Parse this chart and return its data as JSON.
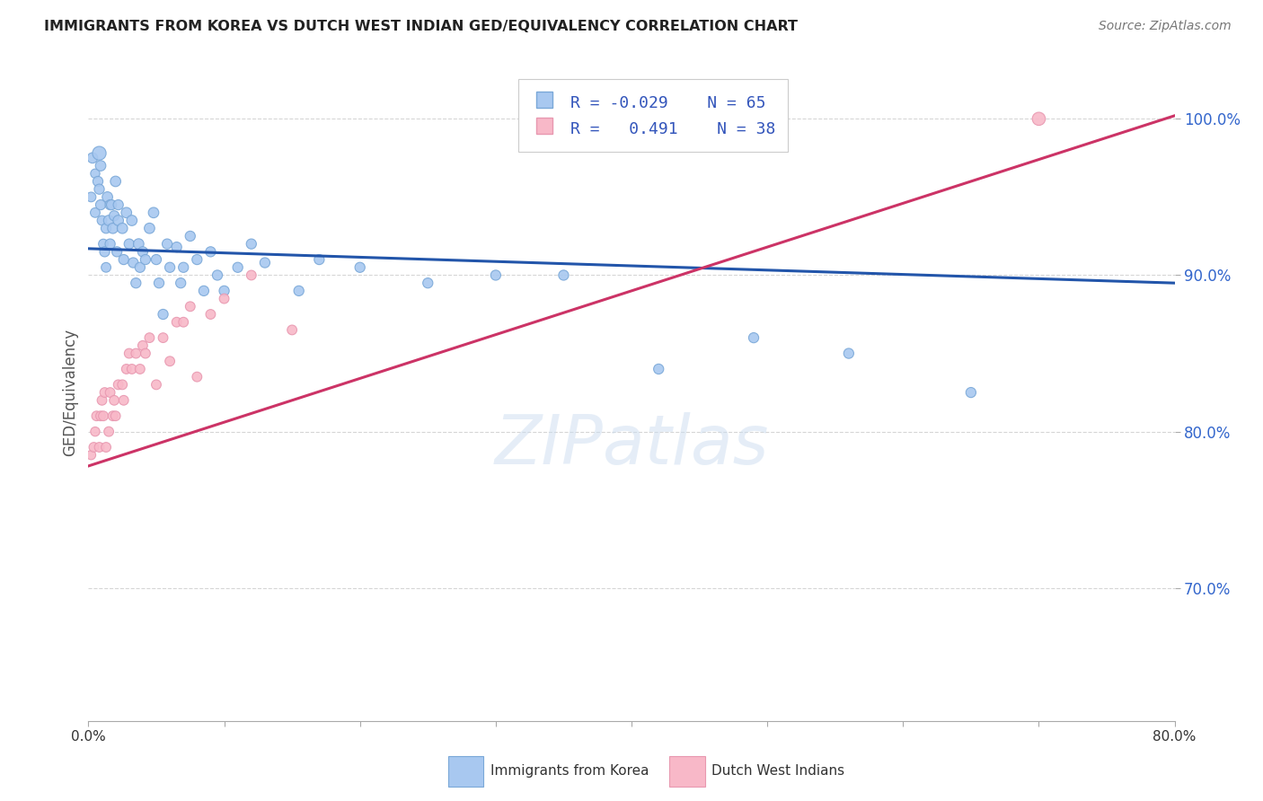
{
  "title": "IMMIGRANTS FROM KOREA VS DUTCH WEST INDIAN GED/EQUIVALENCY CORRELATION CHART",
  "source": "Source: ZipAtlas.com",
  "ylabel": "GED/Equivalency",
  "xlim": [
    0.0,
    0.8
  ],
  "ylim": [
    0.615,
    1.035
  ],
  "ytick_labels": [
    "70.0%",
    "80.0%",
    "90.0%",
    "100.0%"
  ],
  "ytick_values": [
    0.7,
    0.8,
    0.9,
    1.0
  ],
  "xtick_values": [
    0.0,
    0.1,
    0.2,
    0.3,
    0.4,
    0.5,
    0.6,
    0.7,
    0.8
  ],
  "xtick_labels": [
    "0.0%",
    "",
    "",
    "",
    "",
    "",
    "",
    "",
    "80.0%"
  ],
  "korea_color": "#a8c8f0",
  "korea_edge": "#7aa8d8",
  "dwi_color": "#f8b8c8",
  "dwi_edge": "#e898b0",
  "trend_korea_color": "#2255aa",
  "trend_dwi_color": "#cc3366",
  "background_color": "#ffffff",
  "legend_label_korea": "Immigrants from Korea",
  "legend_label_dwi": "Dutch West Indians",
  "korea_R": -0.029,
  "korea_N": 65,
  "dwi_R": 0.491,
  "dwi_N": 38,
  "korea_trend_x": [
    0.0,
    0.8
  ],
  "korea_trend_y": [
    0.917,
    0.895
  ],
  "dwi_trend_x": [
    0.0,
    0.8
  ],
  "dwi_trend_y": [
    0.778,
    1.002
  ],
  "korea_x": [
    0.002,
    0.003,
    0.005,
    0.005,
    0.007,
    0.008,
    0.008,
    0.009,
    0.009,
    0.01,
    0.011,
    0.012,
    0.013,
    0.013,
    0.014,
    0.015,
    0.016,
    0.016,
    0.017,
    0.018,
    0.019,
    0.02,
    0.021,
    0.022,
    0.022,
    0.025,
    0.026,
    0.028,
    0.03,
    0.032,
    0.033,
    0.035,
    0.037,
    0.038,
    0.04,
    0.042,
    0.045,
    0.048,
    0.05,
    0.052,
    0.055,
    0.058,
    0.06,
    0.065,
    0.068,
    0.07,
    0.075,
    0.08,
    0.085,
    0.09,
    0.095,
    0.1,
    0.11,
    0.12,
    0.13,
    0.155,
    0.17,
    0.2,
    0.25,
    0.3,
    0.35,
    0.42,
    0.49,
    0.56,
    0.65
  ],
  "korea_y": [
    0.95,
    0.975,
    0.965,
    0.94,
    0.96,
    0.978,
    0.955,
    0.945,
    0.97,
    0.935,
    0.92,
    0.915,
    0.93,
    0.905,
    0.95,
    0.935,
    0.945,
    0.92,
    0.945,
    0.93,
    0.938,
    0.96,
    0.915,
    0.935,
    0.945,
    0.93,
    0.91,
    0.94,
    0.92,
    0.935,
    0.908,
    0.895,
    0.92,
    0.905,
    0.915,
    0.91,
    0.93,
    0.94,
    0.91,
    0.895,
    0.875,
    0.92,
    0.905,
    0.918,
    0.895,
    0.905,
    0.925,
    0.91,
    0.89,
    0.915,
    0.9,
    0.89,
    0.905,
    0.92,
    0.908,
    0.89,
    0.91,
    0.905,
    0.895,
    0.9,
    0.9,
    0.84,
    0.86,
    0.85,
    0.825
  ],
  "korea_sizes": [
    60,
    70,
    55,
    60,
    65,
    120,
    65,
    65,
    70,
    60,
    60,
    65,
    65,
    60,
    70,
    70,
    65,
    65,
    65,
    70,
    65,
    70,
    65,
    70,
    65,
    70,
    65,
    70,
    65,
    70,
    65,
    65,
    70,
    65,
    65,
    65,
    70,
    70,
    65,
    65,
    65,
    65,
    65,
    65,
    65,
    65,
    65,
    65,
    65,
    65,
    65,
    65,
    65,
    65,
    65,
    65,
    65,
    65,
    65,
    65,
    65,
    65,
    65,
    65,
    65
  ],
  "dwi_x": [
    0.002,
    0.004,
    0.005,
    0.006,
    0.008,
    0.009,
    0.01,
    0.011,
    0.012,
    0.013,
    0.015,
    0.016,
    0.018,
    0.019,
    0.02,
    0.022,
    0.025,
    0.026,
    0.028,
    0.03,
    0.032,
    0.035,
    0.038,
    0.04,
    0.042,
    0.045,
    0.05,
    0.055,
    0.06,
    0.065,
    0.07,
    0.075,
    0.08,
    0.09,
    0.1,
    0.12,
    0.15,
    0.7
  ],
  "dwi_y": [
    0.785,
    0.79,
    0.8,
    0.81,
    0.79,
    0.81,
    0.82,
    0.81,
    0.825,
    0.79,
    0.8,
    0.825,
    0.81,
    0.82,
    0.81,
    0.83,
    0.83,
    0.82,
    0.84,
    0.85,
    0.84,
    0.85,
    0.84,
    0.855,
    0.85,
    0.86,
    0.83,
    0.86,
    0.845,
    0.87,
    0.87,
    0.88,
    0.835,
    0.875,
    0.885,
    0.9,
    0.865,
    1.0
  ],
  "dwi_sizes": [
    55,
    60,
    55,
    60,
    60,
    60,
    60,
    60,
    60,
    60,
    60,
    60,
    60,
    60,
    60,
    60,
    60,
    60,
    60,
    60,
    60,
    60,
    60,
    60,
    60,
    60,
    60,
    60,
    60,
    60,
    60,
    60,
    60,
    60,
    60,
    60,
    60,
    110
  ]
}
